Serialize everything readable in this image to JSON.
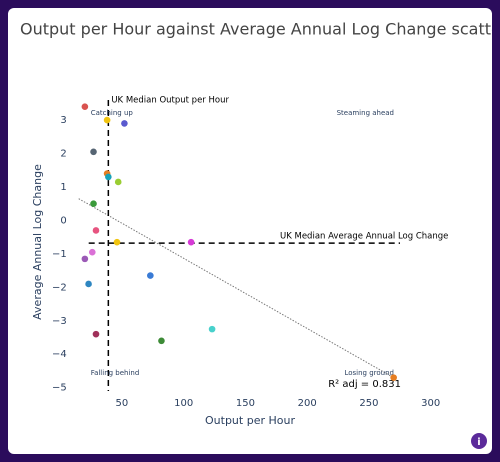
{
  "chart_data": {
    "type": "scatter",
    "title": "Output per Hour against Average Annual Log Change scatter",
    "x_label": "Output per Hour",
    "y_label": "Average Annual Log Change",
    "x": [
      20,
      38,
      52,
      27,
      38,
      39,
      47,
      27,
      29,
      46,
      106,
      26,
      20,
      73,
      23,
      123,
      29,
      82,
      270
    ],
    "values": [
      3.4,
      3.0,
      2.9,
      2.05,
      1.4,
      1.3,
      1.15,
      0.5,
      -0.3,
      -0.65,
      -0.65,
      -0.95,
      -1.15,
      -1.65,
      -1.9,
      -3.25,
      -3.4,
      -3.6,
      -4.7
    ],
    "colors": [
      "#d9534f",
      "#f1c40f",
      "#5a5acf",
      "#566573",
      "#e67e22",
      "#17a2b8",
      "#9acd32",
      "#3a9a3a",
      "#e75480",
      "#f1c40f",
      "#d63ad6",
      "#da70d6",
      "#9b59b6",
      "#3a7bd5",
      "#2e86c1",
      "#48d1cc",
      "#a0305a",
      "#3d8b37",
      "#e67e22"
    ],
    "xlim": [
      15,
      280
    ],
    "ylim": [
      -5.1,
      3.6
    ],
    "xticks": [
      50,
      100,
      150,
      200,
      250,
      300
    ],
    "yticks": [
      {
        "value": -5,
        "label": "−5"
      },
      {
        "value": -4,
        "label": "−4"
      },
      {
        "value": -3,
        "label": "−3"
      },
      {
        "value": -2,
        "label": "−2"
      },
      {
        "value": -1,
        "label": "−1"
      },
      0,
      1,
      2,
      3
    ],
    "median_x": 39,
    "median_x_label": "UK Median Output per Hour",
    "median_y": -0.68,
    "median_y_label": "UK Median Average Annual Log Change",
    "trend_x": [
      15,
      270
    ],
    "trend_y": [
      0.65,
      -4.7
    ],
    "quadrants": [
      "Catching up",
      "Steaming ahead",
      "Falling behind",
      "Losing ground"
    ],
    "r2_label": "R² adj = 0.831"
  },
  "info_button": "i"
}
